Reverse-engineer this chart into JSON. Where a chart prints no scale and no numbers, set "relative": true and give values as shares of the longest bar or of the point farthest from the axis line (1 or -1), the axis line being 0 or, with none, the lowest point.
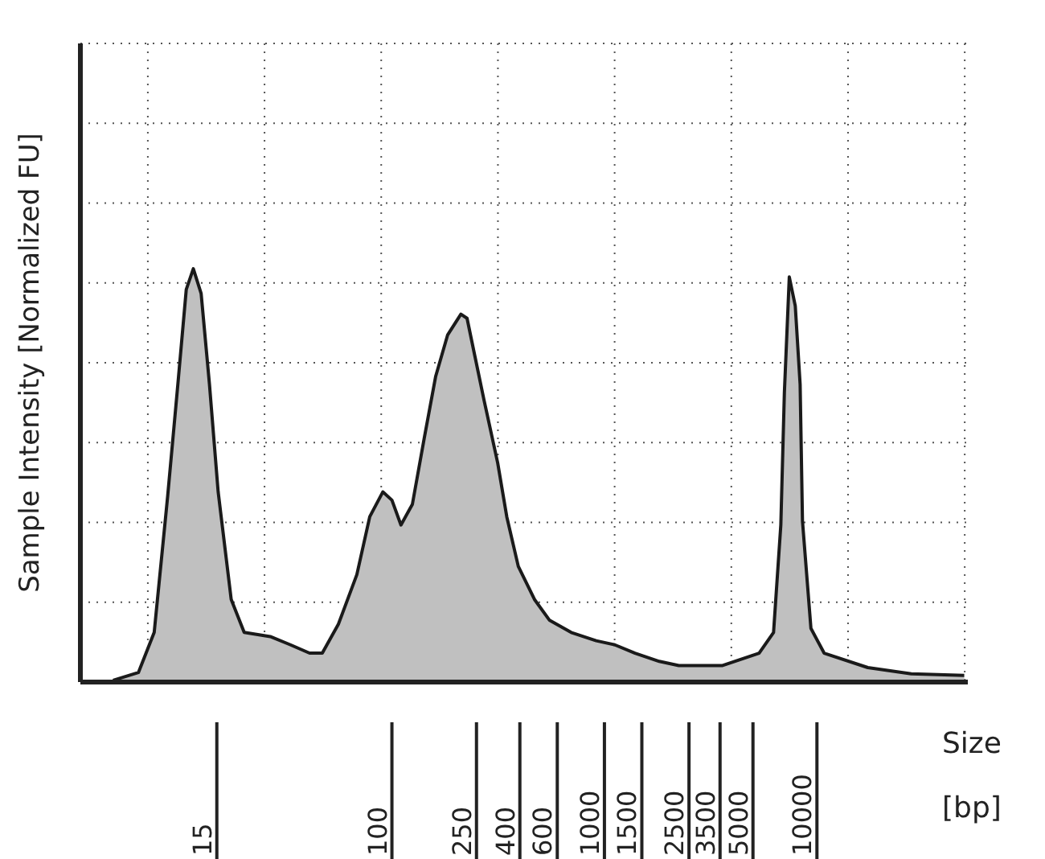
{
  "chart_data": {
    "type": "area",
    "xlabel": "Size [bp]",
    "ylabel": "Sample Intensity [Normalized FU]",
    "relative": true,
    "grid": true,
    "log": "x",
    "xlim": [
      4,
      60000
    ],
    "xticks": [
      15,
      100,
      250,
      400,
      600,
      1000,
      1500,
      2500,
      3500,
      5000,
      10000
    ],
    "x": [
      5.7,
      7.5,
      8.9,
      10.3,
      11.5,
      12.6,
      13.6,
      14.8,
      16.2,
      17.8,
      20.5,
      23.6,
      31.3,
      39,
      47.9,
      55,
      65.5,
      80,
      92,
      106,
      117,
      129,
      146,
      166,
      188,
      214,
      247,
      264,
      287,
      318,
      368,
      406,
      460,
      548,
      644,
      816,
      1070,
      1310,
      1630,
      2120,
      2620,
      4210,
      6250,
      7310,
      7910,
      8220,
      8670,
      9250,
      9750,
      10000,
      10960,
      12650,
      20300,
      32500,
      57700
    ],
    "series": [
      {
        "color": "#c0c0c0",
        "values": [
          0.004,
          0.023,
          0.12,
          0.45,
          0.72,
          0.95,
          1,
          0.94,
          0.72,
          0.46,
          0.2,
          0.12,
          0.11,
          0.09,
          0.07,
          0.07,
          0.14,
          0.26,
          0.4,
          0.46,
          0.44,
          0.38,
          0.43,
          0.59,
          0.74,
          0.84,
          0.89,
          0.88,
          0.79,
          0.68,
          0.53,
          0.4,
          0.28,
          0.2,
          0.15,
          0.12,
          0.1,
          0.09,
          0.07,
          0.05,
          0.04,
          0.04,
          0.07,
          0.12,
          0.38,
          0.7,
          0.98,
          0.91,
          0.72,
          0.39,
          0.13,
          0.07,
          0.035,
          0.02,
          0.016
        ]
      }
    ]
  }
}
